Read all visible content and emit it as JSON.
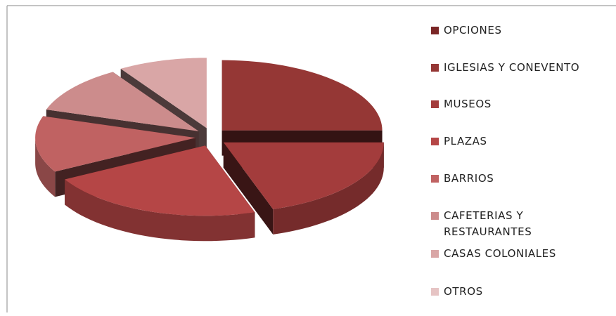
{
  "chart_data": {
    "type": "pie3d",
    "categories": [
      "OPCIONES",
      "IGLESIAS Y CONEVENTO",
      "MUSEOS",
      "PLAZAS",
      "BARRIOS",
      "CAFETERIAS Y RESTAURANTES",
      "CASAS COLONIALES",
      "OTROS"
    ],
    "values": [
      0,
      25,
      20,
      22,
      13,
      11,
      9,
      0
    ],
    "colors": [
      "#7a2626",
      "#953735",
      "#a33c3c",
      "#b54646",
      "#c06262",
      "#cc8c8c",
      "#d9a6a6",
      "#e6c4c4"
    ],
    "legend": "right"
  }
}
